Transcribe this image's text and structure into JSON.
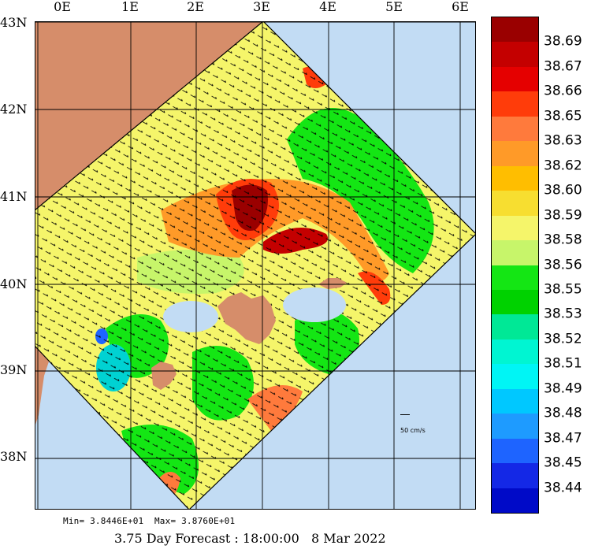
{
  "map": {
    "lon_labels": [
      "0E",
      "1E",
      "2E",
      "3E",
      "4E",
      "5E",
      "6E"
    ],
    "lat_labels": [
      "43N",
      "42N",
      "41N",
      "40N",
      "39N",
      "38N"
    ],
    "colors": {
      "land": "#d68d6a",
      "ocean_outside": "#c2dcf4",
      "grid": "#000000"
    },
    "scale_label": "50 cm/s",
    "min_max_text": "Min= 3.8446E+01  Max= 3.8760E+01",
    "title": "3.75 Day Forecast : 18:00:00   8 Mar 2022"
  },
  "legend": {
    "values": [
      "38.69",
      "38.67",
      "38.66",
      "38.65",
      "38.63",
      "38.62",
      "38.60",
      "38.59",
      "38.58",
      "38.56",
      "38.55",
      "38.53",
      "38.52",
      "38.51",
      "38.49",
      "38.48",
      "38.47",
      "38.45",
      "38.44"
    ],
    "colors": [
      "#9a0000",
      "#c40000",
      "#e50000",
      "#ff3c0a",
      "#ff7a3c",
      "#ff9a28",
      "#ffbe00",
      "#f7de30",
      "#f5f56a",
      "#c7f56a",
      "#14e614",
      "#00d200",
      "#00e896",
      "#00f5d2",
      "#00f5f5",
      "#00c8ff",
      "#1e9bff",
      "#1e64ff",
      "#1428e6",
      "#000ac8"
    ]
  }
}
